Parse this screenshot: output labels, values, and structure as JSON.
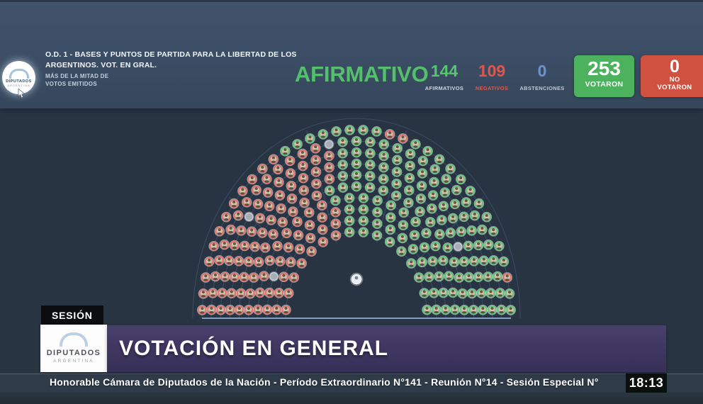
{
  "header": {
    "agenda_line1": "O.D. 1 - BASES Y PUNTOS DE PARTIDA PARA LA LIBERTAD DE LOS",
    "agenda_line2": "ARGENTINOS. VOT. EN GRAL.",
    "quorum_line1": "MÁS DE LA MITAD DE",
    "quorum_line2": "VOTOS EMITIDOS",
    "result": "AFIRMATIVO",
    "result_color": "#54c06c",
    "logo": {
      "title": "DIPUTADOS",
      "subtitle": "ARGENTINA"
    },
    "counters": [
      {
        "value": "144",
        "label": "AFIRMATIVOS",
        "value_color": "#58c472",
        "label_color": "#cbd5e0"
      },
      {
        "value": "109",
        "label": "NEGATIVOS",
        "value_color": "#e2554a",
        "label_color": "#d8594d"
      },
      {
        "value": "0",
        "label": "ABSTENCIONES",
        "value_color": "#6d93cc",
        "label_color": "#bcc8d5"
      }
    ],
    "votaron": {
      "value": "253",
      "label": "VOTARON",
      "bg": "#4cb25e"
    },
    "no_votaron": {
      "value": "0",
      "label_line1": "NO",
      "label_line2": "VOTARON",
      "bg": "#d05140"
    }
  },
  "hemicycle": {
    "totals": {
      "afirmativos": 144,
      "negativos": 109,
      "abstenciones": 0,
      "ausentes": 4,
      "total_seats": 257
    },
    "colors": {
      "afirmativo": "#62c97a",
      "negativo": "#e4746b",
      "ausente": "#a9b0b7"
    },
    "rows": [
      "RRRRRRRGGGGGGGGG",
      "RRRRRRRRGGGGGGGGGG",
      "RRXRRRRRRGGGGGGGGGGG",
      "RRRRRRRRRGGGGGGGGGGGGG",
      "RRRRRRRRRRGGGGGGGGGGGGGGG",
      "RRRRRRRRRRRRGGGGGGGGGGXGGGG",
      "RRRRRRRRRRRRRGGGGGGGGGGGGGGGG",
      "RRRRRRXRRRRRRRGGGGGGGGGGGGGGGGG",
      "RRRRRRRRRRRRRRXGGGGGGGGGGGGGGGGGG",
      "RRRRRRRRRRRRGGGGGGGGRRGGGGGGGGGGGRGG"
    ]
  },
  "lower_third": {
    "session_tag": "SESIÓN",
    "logo": {
      "title": "DIPUTADOS",
      "subtitle": "ARGENTINA"
    },
    "banner_title": "VOTACIÓN EN GENERAL",
    "ticker": "Honorable Cámara de Diputados de la Nación - Período Extraordinario N°141 - Reunión N°14 - Sesión Especial N°",
    "clock": "18:13"
  }
}
